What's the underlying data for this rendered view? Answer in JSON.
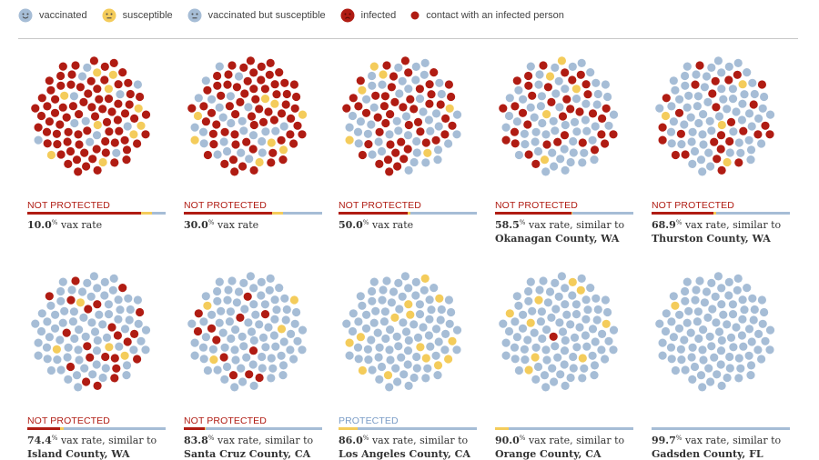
{
  "legend": [
    {
      "key": "vaccinated",
      "label": "vaccinated",
      "color": "#a6bdd6",
      "icon": "smile-face-icon"
    },
    {
      "key": "susceptible",
      "label": "susceptible",
      "color": "#f4cc5b",
      "icon": "neutral-face-icon"
    },
    {
      "key": "vacc_susc",
      "label": "vaccinated but susceptible",
      "color": "#a6bdd6",
      "icon": "neutral-face-icon"
    },
    {
      "key": "infected",
      "label": "infected",
      "color": "#b01c13",
      "icon": "sick-face-icon"
    },
    {
      "key": "contact",
      "label": "contact with an infected person",
      "color": "#b01c13",
      "icon": "dot-icon"
    }
  ],
  "colors": {
    "vaccinated": "#a6bdd6",
    "susceptible": "#f4cc5b",
    "infected": "#b01c13",
    "not_protected_text": "#b01c13",
    "protected_text": "#7a9cc6",
    "bar_vaccinated": "#a6bdd6",
    "bar_susceptible": "#f4cc5b",
    "bar_infected": "#b01c13"
  },
  "chart_data": {
    "type": "dot-matrix",
    "dots_per_population": 100,
    "units": {
      "rate_sup": "%",
      "rate_suffix": " vax rate",
      "similar_suffix": ", similar to"
    },
    "panels": [
      {
        "status": "NOT PROTECTED",
        "protected": false,
        "vax_rate": 10.0,
        "rate_text": "10.0",
        "county": "",
        "composition": {
          "infected_or_contact": 78,
          "susceptible": 10,
          "vaccinated": 12
        },
        "bar": {
          "infected": 0.82,
          "susceptible": 0.08,
          "vaccinated": 0.1
        }
      },
      {
        "status": "NOT PROTECTED",
        "protected": false,
        "vax_rate": 30.0,
        "rate_text": "30.0",
        "county": "",
        "composition": {
          "infected_or_contact": 66,
          "susceptible": 8,
          "vaccinated": 26
        },
        "bar": {
          "infected": 0.64,
          "susceptible": 0.08,
          "vaccinated": 0.28
        }
      },
      {
        "status": "NOT PROTECTED",
        "protected": false,
        "vax_rate": 50.0,
        "rate_text": "50.0",
        "county": "",
        "composition": {
          "infected_or_contact": 48,
          "susceptible": 6,
          "vaccinated": 46
        },
        "bar": {
          "infected": 0.5,
          "susceptible": 0.02,
          "vaccinated": 0.48
        }
      },
      {
        "status": "NOT PROTECTED",
        "protected": false,
        "vax_rate": 58.5,
        "rate_text": "58.5",
        "county": "Okanagan County, WA",
        "composition": {
          "infected_or_contact": 36,
          "susceptible": 5,
          "vaccinated": 59
        },
        "bar": {
          "infected": 0.55,
          "susceptible": 0.01,
          "vaccinated": 0.44
        }
      },
      {
        "status": "NOT PROTECTED",
        "protected": false,
        "vax_rate": 68.9,
        "rate_text": "68.9",
        "county": "Thurston County, WA",
        "composition": {
          "infected_or_contact": 28,
          "susceptible": 4,
          "vaccinated": 68
        },
        "bar": {
          "infected": 0.45,
          "susceptible": 0.02,
          "vaccinated": 0.53
        }
      },
      {
        "status": "NOT PROTECTED",
        "protected": false,
        "vax_rate": 74.4,
        "rate_text": "74.4",
        "county": "Island County, WA",
        "composition": {
          "infected_or_contact": 22,
          "susceptible": 4,
          "vaccinated": 74
        },
        "bar": {
          "infected": 0.24,
          "susceptible": 0.02,
          "vaccinated": 0.74
        }
      },
      {
        "status": "NOT PROTECTED",
        "protected": false,
        "vax_rate": 83.8,
        "rate_text": "83.8",
        "county": "Santa Cruz County, CA",
        "composition": {
          "infected_or_contact": 12,
          "susceptible": 4,
          "vaccinated": 84
        },
        "bar": {
          "infected": 0.15,
          "susceptible": 0.01,
          "vaccinated": 0.84
        }
      },
      {
        "status": "PROTECTED",
        "protected": true,
        "vax_rate": 86.0,
        "rate_text": "86.0",
        "county": "Los Angeles County, CA",
        "composition": {
          "infected_or_contact": 0,
          "susceptible": 14,
          "vaccinated": 86
        },
        "bar": {
          "infected": 0,
          "susceptible": 0.14,
          "vaccinated": 0.86
        }
      },
      {
        "status": "",
        "protected": true,
        "vax_rate": 90.0,
        "rate_text": "90.0",
        "county": "Orange County, CA",
        "composition": {
          "infected_or_contact": 1,
          "susceptible": 9,
          "vaccinated": 90
        },
        "bar": {
          "infected": 0,
          "susceptible": 0.1,
          "vaccinated": 0.9
        }
      },
      {
        "status": "",
        "protected": true,
        "vax_rate": 99.7,
        "rate_text": "99.7",
        "county": "Gadsden County, FL",
        "composition": {
          "infected_or_contact": 0,
          "susceptible": 1,
          "vaccinated": 99
        },
        "bar": {
          "infected": 0,
          "susceptible": 0.003,
          "vaccinated": 0.997
        }
      }
    ]
  }
}
